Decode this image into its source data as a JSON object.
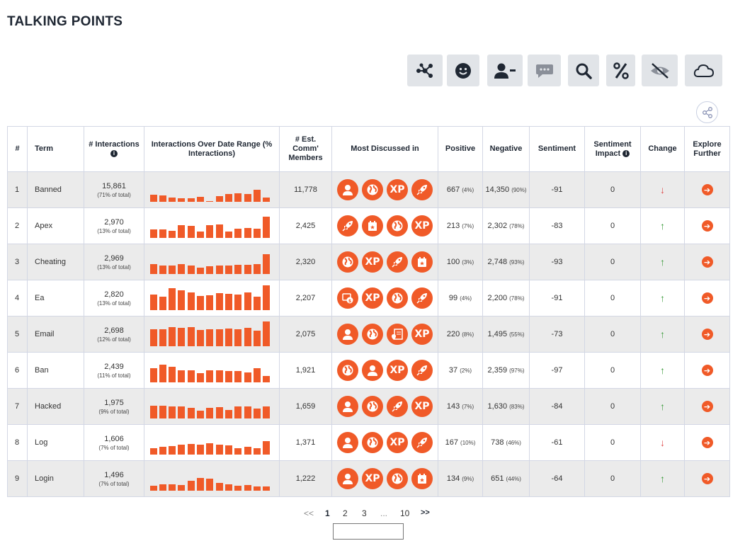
{
  "page_title": "TALKING POINTS",
  "toolbar": [
    {
      "icon": "network-icon"
    },
    {
      "icon": "smiley-icon"
    },
    {
      "icon": "user-minus-icon"
    },
    {
      "icon": "chat-bubble-icon"
    },
    {
      "icon": "search-icon"
    },
    {
      "icon": "percent-icon"
    },
    {
      "icon": "eye-slash-icon"
    },
    {
      "icon": "cloud-icon"
    }
  ],
  "share_icon": "share-icon",
  "headers": {
    "rank": "#",
    "term": "Term",
    "interactions": "# Interactions",
    "over_range": "Interactions Over Date Range (% Interactions)",
    "members": "# Est. Comm' Members",
    "discussed": "Most Discussed in",
    "positive": "Positive",
    "negative": "Negative",
    "sentiment": "Sentiment",
    "impact": "Sentiment Impact",
    "change": "Change",
    "explore": "Explore Further"
  },
  "colors": {
    "accent": "#f05a28",
    "negative": "#e04b4b",
    "positive_arrow": "#3a9a3a",
    "zero": "#8ea33a",
    "row_shade": "#ebebeb"
  },
  "rows": [
    {
      "rank": "1",
      "term": "Banned",
      "interactions": "15,861",
      "pct": "(71% of total)",
      "members": "11,778",
      "channels": [
        "user",
        "globe",
        "xp",
        "rocket"
      ],
      "pos": "667",
      "pos_pct": "(4%)",
      "neg": "14,350",
      "neg_pct": "(90%)",
      "sentiment": "-91",
      "impact": "0",
      "change": "down",
      "spark": [
        0.28,
        0.24,
        0.18,
        0.14,
        0.14,
        0.2,
        0.04,
        0.22,
        0.3,
        0.34,
        0.3,
        0.48,
        0.16
      ]
    },
    {
      "rank": "2",
      "term": "Apex",
      "interactions": "2,970",
      "pct": "(13% of total)",
      "members": "2,425",
      "channels": [
        "rocket",
        "calendar",
        "globe",
        "xp"
      ],
      "pos": "213",
      "pos_pct": "(7%)",
      "neg": "2,302",
      "neg_pct": "(78%)",
      "sentiment": "-83",
      "impact": "0",
      "change": "up",
      "spark": [
        0.34,
        0.34,
        0.28,
        0.5,
        0.46,
        0.24,
        0.5,
        0.52,
        0.24,
        0.36,
        0.4,
        0.36,
        0.82
      ]
    },
    {
      "rank": "3",
      "term": "Cheating",
      "interactions": "2,969",
      "pct": "(13% of total)",
      "members": "2,320",
      "channels": [
        "globe",
        "xp",
        "rocket",
        "calendar"
      ],
      "pos": "100",
      "pos_pct": "(3%)",
      "neg": "2,748",
      "neg_pct": "(93%)",
      "sentiment": "-93",
      "impact": "0",
      "change": "up",
      "spark": [
        0.38,
        0.32,
        0.34,
        0.38,
        0.34,
        0.24,
        0.3,
        0.32,
        0.34,
        0.36,
        0.36,
        0.38,
        0.78
      ]
    },
    {
      "rank": "4",
      "term": "Ea",
      "interactions": "2,820",
      "pct": "(13% of total)",
      "members": "2,207",
      "channels": [
        "money",
        "xp",
        "globe",
        "rocket"
      ],
      "pos": "99",
      "pos_pct": "(4%)",
      "neg": "2,200",
      "neg_pct": "(78%)",
      "sentiment": "-91",
      "impact": "0",
      "change": "up",
      "spark": [
        0.6,
        0.52,
        0.86,
        0.78,
        0.7,
        0.56,
        0.58,
        0.66,
        0.64,
        0.6,
        0.7,
        0.52,
        0.98
      ]
    },
    {
      "rank": "5",
      "term": "Email",
      "interactions": "2,698",
      "pct": "(12% of total)",
      "members": "2,075",
      "channels": [
        "user",
        "globe",
        "map-doc",
        "xp"
      ],
      "pos": "220",
      "pos_pct": "(8%)",
      "neg": "1,495",
      "neg_pct": "(55%)",
      "sentiment": "-73",
      "impact": "0",
      "change": "up",
      "spark": [
        0.66,
        0.66,
        0.74,
        0.72,
        0.74,
        0.64,
        0.68,
        0.66,
        0.7,
        0.66,
        0.72,
        0.62,
        0.98
      ]
    },
    {
      "rank": "6",
      "term": "Ban",
      "interactions": "2,439",
      "pct": "(11% of total)",
      "members": "1,921",
      "channels": [
        "globe",
        "user",
        "xp",
        "rocket"
      ],
      "pos": "37",
      "pos_pct": "(2%)",
      "neg": "2,359",
      "neg_pct": "(97%)",
      "sentiment": "-97",
      "impact": "0",
      "change": "up",
      "spark": [
        0.56,
        0.7,
        0.6,
        0.46,
        0.46,
        0.36,
        0.46,
        0.46,
        0.44,
        0.44,
        0.38,
        0.56,
        0.26
      ]
    },
    {
      "rank": "7",
      "term": "Hacked",
      "interactions": "1,975",
      "pct": "(9% of total)",
      "members": "1,659",
      "channels": [
        "user",
        "globe",
        "rocket",
        "xp"
      ],
      "pos": "143",
      "pos_pct": "(7%)",
      "neg": "1,630",
      "neg_pct": "(83%)",
      "sentiment": "-84",
      "impact": "0",
      "change": "up",
      "spark": [
        0.5,
        0.5,
        0.46,
        0.48,
        0.42,
        0.3,
        0.42,
        0.44,
        0.34,
        0.46,
        0.46,
        0.38,
        0.48
      ]
    },
    {
      "rank": "8",
      "term": "Log",
      "interactions": "1,606",
      "pct": "(7% of total)",
      "members": "1,371",
      "channels": [
        "user",
        "globe",
        "xp",
        "rocket"
      ],
      "pos": "167",
      "pos_pct": "(10%)",
      "neg": "738",
      "neg_pct": "(46%)",
      "sentiment": "-61",
      "impact": "0",
      "change": "down",
      "spark": [
        0.24,
        0.3,
        0.34,
        0.38,
        0.42,
        0.38,
        0.44,
        0.4,
        0.36,
        0.24,
        0.3,
        0.24,
        0.52
      ]
    },
    {
      "rank": "9",
      "term": "Login",
      "interactions": "1,496",
      "pct": "(7% of total)",
      "members": "1,222",
      "channels": [
        "user",
        "xp",
        "globe",
        "calendar"
      ],
      "pos": "134",
      "pos_pct": "(9%)",
      "neg": "651",
      "neg_pct": "(44%)",
      "sentiment": "-64",
      "impact": "0",
      "change": "up",
      "spark": [
        0.2,
        0.24,
        0.26,
        0.22,
        0.38,
        0.5,
        0.48,
        0.3,
        0.24,
        0.2,
        0.22,
        0.18,
        0.18
      ]
    }
  ],
  "pagination": {
    "prev": "<<",
    "pages": [
      "1",
      "2",
      "3",
      "...",
      "10"
    ],
    "current": "1",
    "next": ">>"
  }
}
